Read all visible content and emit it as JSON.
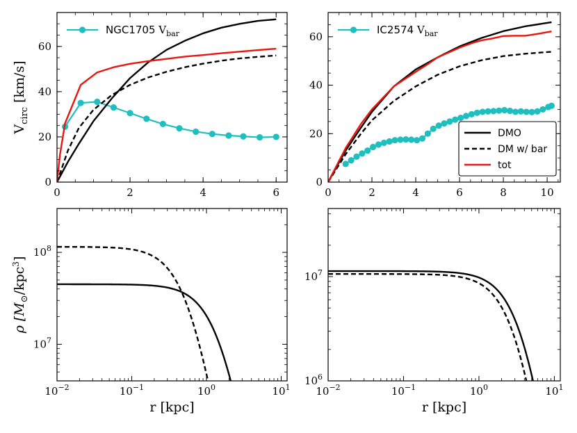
{
  "chart_data": [
    {
      "id": "ngc1705-vcirc",
      "type": "line",
      "xlim": [
        0,
        6.3
      ],
      "ylim": [
        0,
        75
      ],
      "xticks": [
        0,
        2,
        4,
        6
      ],
      "yticks": [
        0,
        20,
        40,
        60
      ],
      "xtick_labels": [
        "0",
        "2",
        "4",
        "6"
      ],
      "ytick_labels": [
        "0",
        "20",
        "40",
        "60"
      ],
      "xlabel": "",
      "ylabel": {
        "main": "V",
        "sub": "circ",
        "rest": " [km/s]"
      },
      "legend": {
        "position": "top-left",
        "entries": [
          {
            "name": "NGC1705",
            "sub": "bar",
            "prefix": "V"
          }
        ]
      },
      "series": [
        {
          "name": "NGC1705 V_bar",
          "style": "cyan-markers",
          "x": [
            0.22,
            0.65,
            1.1,
            1.55,
            2.0,
            2.45,
            2.9,
            3.35,
            3.8,
            4.25,
            4.7,
            5.1,
            5.55,
            6.0
          ],
          "y": [
            24.5,
            35,
            35.5,
            33,
            30.5,
            28,
            25.7,
            23.8,
            22.3,
            21.3,
            20.6,
            20.2,
            19.8,
            20
          ]
        },
        {
          "name": "DMO",
          "style": "solid-black",
          "x": [
            0,
            0.3,
            0.6,
            1.0,
            1.5,
            2.0,
            2.5,
            3.0,
            3.5,
            4.0,
            4.5,
            5.0,
            5.5,
            6.0
          ],
          "y": [
            0,
            9,
            17,
            27,
            37,
            46,
            53,
            58.5,
            62.5,
            65.8,
            68.3,
            70,
            71.3,
            72
          ]
        },
        {
          "name": "DM w/ bar",
          "style": "dashed-black",
          "x": [
            0,
            0.3,
            0.6,
            1.0,
            1.5,
            2.0,
            2.5,
            3.0,
            3.5,
            4.0,
            4.5,
            5.0,
            5.5,
            6.0
          ],
          "y": [
            0,
            14,
            24,
            32,
            38.5,
            43,
            46.3,
            48.8,
            50.8,
            52.4,
            53.7,
            54.7,
            55.4,
            56
          ]
        },
        {
          "name": "tot",
          "style": "solid-red",
          "x": [
            0,
            0.08,
            0.22,
            0.65,
            1.1,
            1.55,
            2.0,
            2.5,
            3.0,
            3.5,
            4.0,
            4.5,
            5.0,
            5.5,
            6.0
          ],
          "y": [
            0,
            12,
            26,
            43,
            48.5,
            50.8,
            52.3,
            53.5,
            54.5,
            55.5,
            56.2,
            57,
            57.7,
            58.4,
            59
          ]
        }
      ]
    },
    {
      "id": "ic2574-vcirc",
      "type": "line",
      "xlim": [
        0,
        10.6
      ],
      "ylim": [
        0,
        70
      ],
      "xticks": [
        0,
        2,
        4,
        6,
        8,
        10
      ],
      "yticks": [
        0,
        20,
        40,
        60
      ],
      "xtick_labels": [
        "0",
        "2",
        "4",
        "6",
        "8",
        "10"
      ],
      "ytick_labels": [
        "0",
        "20",
        "40",
        "60"
      ],
      "xlabel": "",
      "ylabel": "",
      "legend": {
        "position": "top-left",
        "entries": [
          {
            "name": "IC2574",
            "sub": "bar",
            "prefix": "V"
          }
        ]
      },
      "legend2": {
        "position": "bottom-right",
        "entries": [
          "DMO",
          "DM w/ bar",
          "tot"
        ]
      },
      "series": [
        {
          "name": "IC2574 V_bar",
          "style": "cyan-markers",
          "x": [
            0.8,
            1.05,
            1.3,
            1.55,
            1.8,
            2.05,
            2.3,
            2.55,
            2.8,
            3.05,
            3.3,
            3.55,
            3.8,
            4.05,
            4.3,
            4.55,
            4.8,
            5.05,
            5.3,
            5.55,
            5.8,
            6.05,
            6.3,
            6.55,
            6.8,
            7.05,
            7.3,
            7.55,
            7.8,
            8.05,
            8.3,
            8.55,
            8.8,
            9.05,
            9.3,
            9.55,
            9.8,
            10.05,
            10.2
          ],
          "y": [
            7.5,
            9,
            10.5,
            11.8,
            13,
            14.5,
            15.5,
            16.2,
            16.8,
            17.3,
            17.5,
            17.6,
            17.5,
            17.3,
            18,
            20,
            22,
            23.3,
            24.2,
            25,
            25.8,
            26.5,
            27.3,
            28,
            28.6,
            29,
            29.2,
            29.3,
            29.5,
            29.7,
            29.4,
            29,
            29.2,
            29,
            28.9,
            29.2,
            30,
            31,
            31.5
          ]
        },
        {
          "name": "DMO",
          "style": "solid-black",
          "x": [
            0,
            0.8,
            1.5,
            2.0,
            3.0,
            4.0,
            5.0,
            6.0,
            7.0,
            8.0,
            9.0,
            10.2
          ],
          "y": [
            0,
            13,
            22.5,
            29,
            39.5,
            46.5,
            51.5,
            56,
            59.5,
            62.3,
            64.3,
            66
          ]
        },
        {
          "name": "DM w/ bar",
          "style": "dashed-black",
          "x": [
            0,
            0.8,
            1.5,
            2.0,
            3.0,
            4.0,
            5.0,
            6.0,
            7.0,
            8.0,
            9.0,
            10.2
          ],
          "y": [
            0,
            11.5,
            20,
            25.5,
            33.5,
            39.5,
            44.3,
            47.8,
            50.3,
            52,
            53,
            53.8
          ]
        },
        {
          "name": "tot",
          "style": "solid-red",
          "x": [
            0,
            0.8,
            1.5,
            2.0,
            3.0,
            4.0,
            4.6,
            5.0,
            6.0,
            6.6,
            7.0,
            7.5,
            8.0,
            8.5,
            9.0,
            9.5,
            10.2
          ],
          "y": [
            0,
            14,
            24,
            30,
            39.5,
            45.5,
            49,
            51.5,
            55.5,
            57.5,
            58.5,
            59.3,
            60.3,
            60.4,
            60.4,
            61.1,
            62.2
          ]
        }
      ]
    },
    {
      "id": "ngc1705-density",
      "type": "line",
      "xscale": "log",
      "yscale": "log",
      "xlim": [
        0.01,
        12
      ],
      "ylim": [
        4000000,
        300000000
      ],
      "xticks": [
        0.01,
        0.1,
        1,
        10
      ],
      "yticks": [
        10000000,
        100000000
      ],
      "xtick_labels": [
        {
          "base": "10",
          "exp": "−2"
        },
        {
          "base": "10",
          "exp": "−1"
        },
        {
          "base": "10",
          "exp": "0"
        },
        {
          "base": "10",
          "exp": "1"
        }
      ],
      "ytick_labels": [
        {
          "base": "10",
          "exp": "7"
        },
        {
          "base": "10",
          "exp": "8"
        }
      ],
      "xlabel": "r [kpc]",
      "ylabel": {
        "main": "ρ [M",
        "sub": "⊙",
        "rest": "/kpc",
        "sup": "3",
        "end": "]"
      },
      "series": [
        {
          "name": "DMO",
          "style": "solid-black",
          "model": "cored",
          "rho0": 45000000,
          "rc": 1.6,
          "p": 2.4
        },
        {
          "name": "DM w/ bar",
          "style": "dashed-black",
          "model": "cored",
          "rho0": 115000000,
          "rc": 0.6,
          "p": 2.4
        }
      ]
    },
    {
      "id": "ic2574-density",
      "type": "line",
      "xscale": "log",
      "yscale": "log",
      "xlim": [
        0.01,
        12
      ],
      "ylim": [
        1000000,
        45000000
      ],
      "xticks": [
        0.01,
        0.1,
        1,
        10
      ],
      "yticks": [
        1000000,
        10000000
      ],
      "xtick_labels": [
        {
          "base": "10",
          "exp": "−2"
        },
        {
          "base": "10",
          "exp": "−1"
        },
        {
          "base": "10",
          "exp": "0"
        },
        {
          "base": "10",
          "exp": "1"
        }
      ],
      "ytick_labels": [
        {
          "base": "10",
          "exp": "6"
        },
        {
          "base": "10",
          "exp": "7"
        }
      ],
      "xlabel": "r [kpc]",
      "ylabel": "",
      "series": [
        {
          "name": "DMO",
          "style": "solid-black",
          "model": "cored",
          "rho0": 11300000,
          "rc": 4.2,
          "p": 2.6
        },
        {
          "name": "DM w/ bar",
          "style": "dashed-black",
          "model": "cored",
          "rho0": 10600000,
          "rc": 3.5,
          "p": 2.6
        }
      ]
    }
  ]
}
